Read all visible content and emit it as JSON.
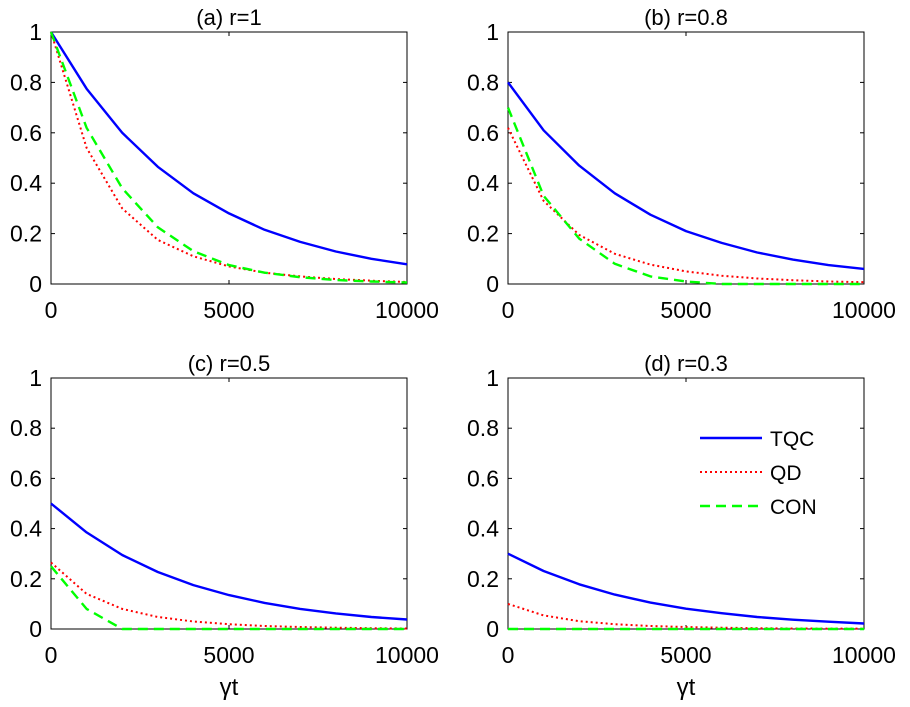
{
  "chart_data": [
    {
      "type": "line",
      "panel": "a",
      "title": "(a) r=1",
      "xlabel": "",
      "ylabel": "",
      "xlim": [
        0,
        10000
      ],
      "ylim": [
        0,
        1
      ],
      "xticks": [
        "0",
        "5000",
        "10000"
      ],
      "yticks": [
        "0",
        "0.2",
        "0.4",
        "0.6",
        "0.8",
        "1"
      ],
      "x": [
        0,
        1000,
        2000,
        3000,
        4000,
        5000,
        6000,
        7000,
        8000,
        9000,
        10000
      ],
      "series": [
        {
          "name": "TQC",
          "values": [
            1.0,
            0.775,
            0.6,
            0.465,
            0.36,
            0.28,
            0.215,
            0.167,
            0.129,
            0.1,
            0.078
          ]
        },
        {
          "name": "QD",
          "values": [
            1.0,
            0.54,
            0.3,
            0.175,
            0.11,
            0.07,
            0.045,
            0.03,
            0.02,
            0.013,
            0.008
          ]
        },
        {
          "name": "CON",
          "values": [
            1.0,
            0.62,
            0.38,
            0.225,
            0.13,
            0.075,
            0.045,
            0.027,
            0.016,
            0.01,
            0.006
          ]
        }
      ]
    },
    {
      "type": "line",
      "panel": "b",
      "title": "(b) r=0.8",
      "xlabel": "",
      "ylabel": "",
      "xlim": [
        0,
        10000
      ],
      "ylim": [
        0,
        1
      ],
      "xticks": [
        "0",
        "5000",
        "10000"
      ],
      "yticks": [
        "0",
        "0.2",
        "0.4",
        "0.6",
        "0.8",
        "1"
      ],
      "x": [
        0,
        1000,
        2000,
        3000,
        4000,
        5000,
        6000,
        7000,
        8000,
        9000,
        10000
      ],
      "series": [
        {
          "name": "TQC",
          "values": [
            0.8,
            0.61,
            0.47,
            0.36,
            0.275,
            0.21,
            0.163,
            0.125,
            0.097,
            0.075,
            0.06
          ]
        },
        {
          "name": "QD",
          "values": [
            0.62,
            0.33,
            0.195,
            0.12,
            0.077,
            0.05,
            0.033,
            0.022,
            0.015,
            0.01,
            0.007
          ]
        },
        {
          "name": "CON",
          "values": [
            0.7,
            0.35,
            0.18,
            0.08,
            0.03,
            0.01,
            0.0,
            0.0,
            0.0,
            0.0,
            0.0
          ]
        }
      ]
    },
    {
      "type": "line",
      "panel": "c",
      "title": "(c) r=0.5",
      "xlabel": "γt",
      "ylabel": "",
      "xlim": [
        0,
        10000
      ],
      "ylim": [
        0,
        1
      ],
      "xticks": [
        "0",
        "5000",
        "10000"
      ],
      "yticks": [
        "0",
        "0.2",
        "0.4",
        "0.6",
        "0.8",
        "1"
      ],
      "x": [
        0,
        1000,
        2000,
        3000,
        4000,
        5000,
        6000,
        7000,
        8000,
        9000,
        10000
      ],
      "series": [
        {
          "name": "TQC",
          "values": [
            0.5,
            0.385,
            0.295,
            0.227,
            0.175,
            0.135,
            0.104,
            0.08,
            0.062,
            0.048,
            0.038
          ]
        },
        {
          "name": "QD",
          "values": [
            0.265,
            0.14,
            0.08,
            0.048,
            0.03,
            0.019,
            0.012,
            0.008,
            0.005,
            0.003,
            0.002
          ]
        },
        {
          "name": "CON",
          "values": [
            0.25,
            0.08,
            0.0,
            0.0,
            0.0,
            0.0,
            0.0,
            0.0,
            0.0,
            0.0,
            0.0
          ]
        }
      ]
    },
    {
      "type": "line",
      "panel": "d",
      "title": "(d) r=0.3",
      "xlabel": "γt",
      "ylabel": "",
      "xlim": [
        0,
        10000
      ],
      "ylim": [
        0,
        1
      ],
      "xticks": [
        "0",
        "5000",
        "10000"
      ],
      "yticks": [
        "0",
        "0.2",
        "0.4",
        "0.6",
        "0.8",
        "1"
      ],
      "legend": {
        "placement": "right-middle",
        "entries": [
          "TQC",
          "QD",
          "CON"
        ]
      },
      "x": [
        0,
        1000,
        2000,
        3000,
        4000,
        5000,
        6000,
        7000,
        8000,
        9000,
        10000
      ],
      "series": [
        {
          "name": "TQC",
          "values": [
            0.3,
            0.231,
            0.178,
            0.137,
            0.105,
            0.081,
            0.063,
            0.048,
            0.037,
            0.029,
            0.022
          ]
        },
        {
          "name": "QD",
          "values": [
            0.1,
            0.054,
            0.031,
            0.019,
            0.012,
            0.008,
            0.005,
            0.003,
            0.002,
            0.0015,
            0.001
          ]
        },
        {
          "name": "CON",
          "values": [
            0.0,
            0.0,
            0.0,
            0.0,
            0.0,
            0.0,
            0.0,
            0.0,
            0.0,
            0.0,
            0.0
          ]
        }
      ]
    }
  ],
  "colors": {
    "TQC": "#0000ff",
    "QD": "#ff0000",
    "CON": "#00ff00",
    "axis": "#000000"
  }
}
